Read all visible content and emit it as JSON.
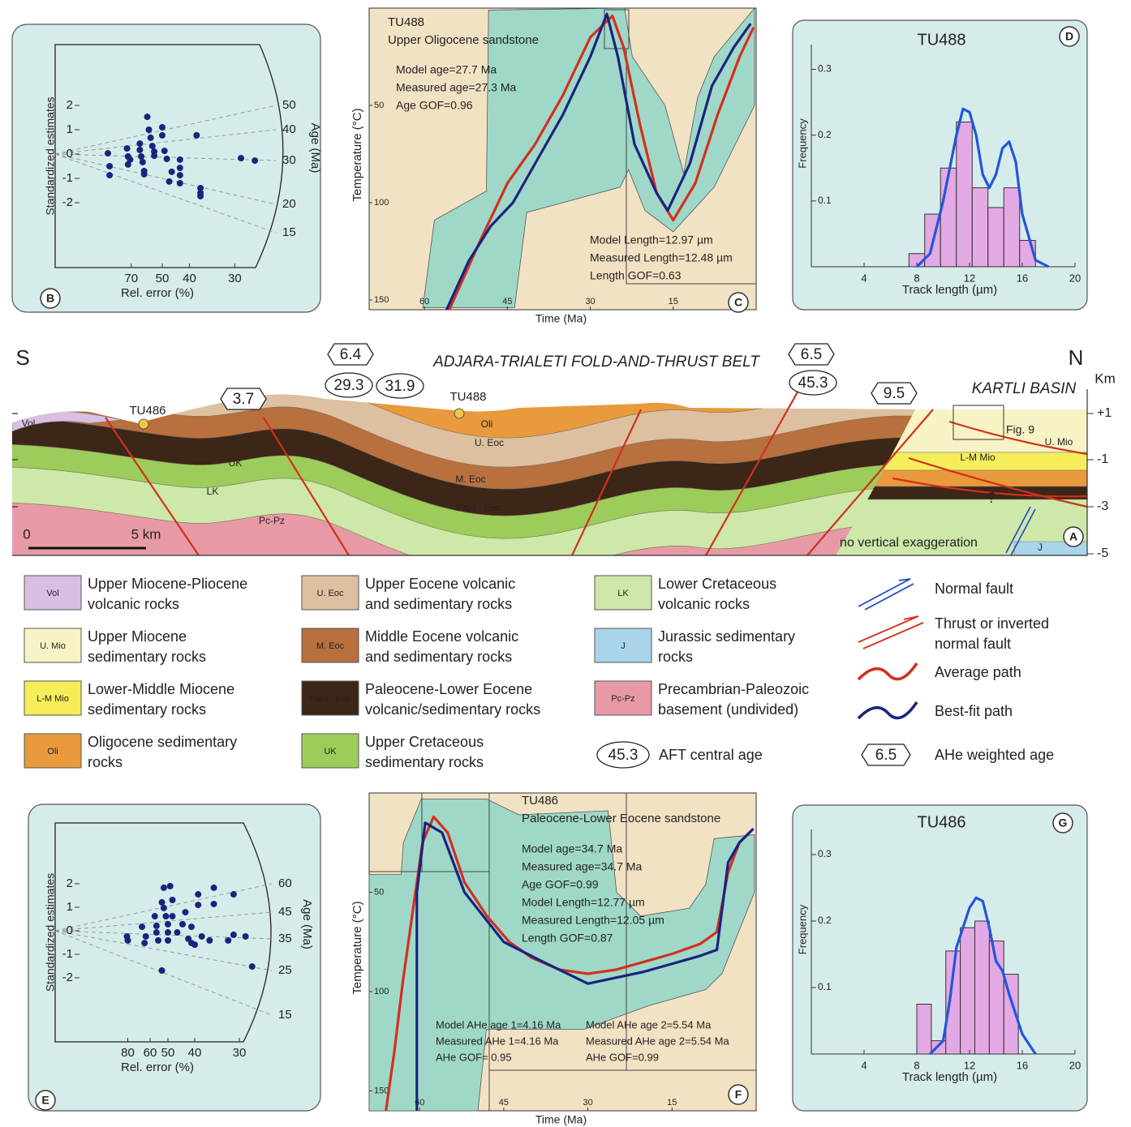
{
  "chart_data": [
    {
      "type": "radial",
      "panel": "B",
      "ylabel": "Standardized estimates",
      "xlabel": "Rel. error (%)",
      "age_label": "Age (Ma)",
      "xticks": [
        70,
        50,
        40,
        30
      ],
      "yticks": [
        2,
        1,
        0,
        -1,
        -2
      ],
      "age_ticks": [
        50,
        40,
        30,
        20,
        15
      ],
      "color": "#1a237e",
      "x": [
        100,
        97,
        97,
        74,
        73,
        73,
        71,
        63,
        63,
        62,
        61,
        60,
        60,
        58,
        57,
        56,
        55,
        54,
        54,
        50,
        50,
        49,
        48,
        47,
        46,
        43,
        43,
        43,
        43,
        38,
        37,
        37,
        37,
        29,
        27
      ],
      "y": [
        0.03,
        -0.5,
        -0.87,
        0.23,
        -0.1,
        -0.43,
        -0.23,
        0.43,
        0.17,
        -0.1,
        -0.33,
        -0.7,
        -0.83,
        1.53,
        1,
        0.67,
        0.33,
        0.1,
        -0.07,
        1.1,
        0.77,
        0.13,
        -0.2,
        -1.13,
        -0.73,
        -0.23,
        -0.57,
        -0.87,
        -1.2,
        0.77,
        -1.4,
        -1.6,
        -1.73,
        -0.17,
        -0.27
      ]
    },
    {
      "type": "line",
      "panel": "C",
      "sample": "TU488",
      "lithology": "Upper Oligocene sandstone",
      "notes": [
        "Model age=27.7 Ma",
        "Measured age=27.3 Ma",
        "Age GOF=0.96"
      ],
      "notes2": [
        "Model Length=12.97 µm",
        "Measured Length=12.48 µm",
        "Length GOF=0.63"
      ],
      "xlabel": "Time (Ma)",
      "ylabel": "Temperature (°C)",
      "xlim": [
        70,
        0
      ],
      "ylim": [
        0,
        155
      ],
      "xticks": [
        60,
        45,
        30,
        15
      ],
      "yticks": [
        50,
        100,
        150
      ],
      "band": {
        "color": "#9fd8c8",
        "x": [
          60.3,
          58.2,
          48.8,
          48.4,
          23.8,
          22.4,
          16.5,
          13.1,
          10.6,
          7.6,
          0.3,
          0.3,
          7.6,
          15,
          20.1,
          23.1,
          24.6,
          41.5,
          43.7
        ],
        "y": [
          154,
          109,
          94,
          1,
          0,
          25,
          50,
          85,
          46,
          25,
          0,
          50,
          92,
          115,
          104,
          83,
          92,
          105,
          154
        ]
      },
      "series": [
        {
          "color": "#d32f1e",
          "x": [
            55.5,
            50,
            45,
            40,
            35,
            30,
            26,
            24,
            21,
            18,
            15,
            11,
            7,
            3,
            0.5
          ],
          "y": [
            155,
            120,
            90,
            70,
            45,
            15,
            4,
            20,
            60,
            95,
            109,
            90,
            55,
            25,
            10
          ]
        },
        {
          "color": "#1a237e",
          "x": [
            56,
            52,
            48,
            44,
            40,
            35,
            30,
            27,
            25,
            22,
            18,
            16,
            12,
            8,
            4,
            1
          ],
          "y": [
            155,
            130,
            112,
            100,
            80,
            55,
            25,
            3,
            25,
            70,
            95,
            104,
            80,
            40,
            20,
            8
          ]
        }
      ]
    },
    {
      "type": "histogram",
      "panel": "D",
      "title": "TU488",
      "xlabel": "Track length (µm)",
      "ylabel": "Frequency",
      "xlim": [
        0,
        20
      ],
      "ylim": [
        0,
        0.35
      ],
      "xticks": [
        4,
        8,
        12,
        16,
        20
      ],
      "yticks": [
        0.1,
        0.2,
        0.3
      ],
      "color": "#e2a9e4",
      "line_color": "#2255dd",
      "bins": [
        7.4,
        8.6,
        9.8,
        11,
        12.2,
        13.4,
        14.6,
        15.8,
        17
      ],
      "values": [
        0.02,
        0.08,
        0.15,
        0.22,
        0.12,
        0.09,
        0.12,
        0.04
      ],
      "curve": {
        "x": [
          8,
          9,
          10,
          11,
          11.5,
          12,
          12.5,
          13,
          13.5,
          14,
          14.5,
          15,
          15.5,
          16,
          17,
          18
        ],
        "y": [
          0,
          0.02,
          0.1,
          0.2,
          0.24,
          0.235,
          0.2,
          0.14,
          0.12,
          0.14,
          0.18,
          0.19,
          0.16,
          0.08,
          0.01,
          0
        ]
      }
    },
    {
      "type": "radial",
      "panel": "E",
      "ylabel": "Standardized estimates",
      "xlabel": "Rel. error (%)",
      "age_label": "Age (Ma)",
      "xticks": [
        80,
        60,
        50,
        40,
        30
      ],
      "yticks": [
        2,
        1,
        0,
        -1,
        -2
      ],
      "age_ticks": [
        60,
        45,
        35,
        25,
        15
      ],
      "color": "#1a237e",
      "x": [
        81,
        80,
        66,
        64,
        63,
        57,
        56,
        56,
        55,
        53,
        52,
        52,
        51,
        50,
        50,
        50,
        53,
        49,
        48,
        48,
        46,
        44,
        43,
        42,
        41,
        41,
        40,
        39,
        39,
        38,
        36,
        35,
        35,
        32,
        31,
        29,
        28,
        31
      ],
      "y": [
        -0.24,
        -0.41,
        0.17,
        -0.52,
        -0.24,
        0.62,
        0.21,
        -0.07,
        -0.41,
        1.21,
        1.83,
        0.97,
        0.62,
        0.28,
        -0.07,
        -0.41,
        -1.69,
        1.9,
        1.31,
        0.62,
        -0.07,
        0.28,
        0.79,
        -0.34,
        -0.52,
        0.17,
        -0.59,
        1.55,
        1.1,
        -0.24,
        -0.41,
        1.14,
        1.83,
        -0.41,
        -0.17,
        -0.24,
        -1.52,
        1.55
      ]
    },
    {
      "type": "line",
      "panel": "F",
      "sample": "TU486",
      "lithology": "Paleocene-Lower Eocene sandstone",
      "notes": [
        "Model age=34.7 Ma",
        "Measured age=34.7 Ma",
        "Age GOF=0.99",
        "Model Length=12.77 µm",
        "Measured Length=12.05 µm",
        "Length GOF=0.87"
      ],
      "ahe1": [
        "Model AHe age 1=4.16 Ma",
        "Measured AHe 1=4.16 Ma",
        "AHe GOF= 0.95"
      ],
      "ahe2": [
        "Model AHe age 2=5.54 Ma",
        "Measured AHe age 2=5.54 Ma",
        "AHe GOF=0.99"
      ],
      "xlabel": "Time (Ma)",
      "ylabel": "Temperature (°C)",
      "xlim": [
        69,
        0
      ],
      "ylim": [
        0,
        160
      ],
      "xticks": [
        60,
        45,
        30,
        15
      ],
      "yticks": [
        50,
        100,
        150
      ],
      "band": {
        "color": "#9fd8c8",
        "x": [
          69,
          69,
          63.3,
          62.9,
          59.7,
          48.1,
          42.3,
          26.4,
          24.9,
          20.6,
          11.9,
          9,
          7.5,
          0.3,
          0.3,
          6.1,
          9,
          19.1,
          30.7,
          48.1,
          49.6
        ],
        "y": [
          160,
          41,
          41,
          25,
          3,
          3,
          11,
          9,
          50,
          62,
          58,
          46,
          23,
          21,
          50,
          91,
          99,
          107,
          119,
          119,
          160
        ]
      },
      "series": [
        {
          "color": "#d32f1e",
          "x": [
            66,
            64.5,
            63,
            61,
            59.5,
            57.5,
            55,
            52,
            48,
            44,
            40,
            35,
            30,
            25,
            20,
            15,
            10,
            7,
            5,
            3,
            0.5
          ],
          "y": [
            160,
            130,
            95,
            55,
            25,
            12,
            20,
            45,
            62,
            75,
            83,
            89,
            91,
            89,
            85,
            81,
            76,
            70,
            40,
            25,
            18
          ]
        },
        {
          "color": "#1a237e",
          "x": [
            60.5,
            60.5,
            59,
            56,
            52,
            45,
            38,
            30,
            20,
            10,
            7,
            5,
            3,
            0.5
          ],
          "y": [
            160,
            50,
            15,
            20,
            50,
            75,
            85,
            96,
            90,
            82,
            79,
            35,
            25,
            18
          ]
        }
      ]
    },
    {
      "type": "histogram",
      "panel": "G",
      "title": "TU486",
      "xlabel": "Track length (µm)",
      "ylabel": "Frequency",
      "xlim": [
        0,
        20
      ],
      "ylim": [
        0,
        0.35
      ],
      "xticks": [
        4,
        8,
        12,
        16,
        20
      ],
      "yticks": [
        0.1,
        0.2,
        0.3
      ],
      "color": "#e2a9e4",
      "line_color": "#2255dd",
      "bins": [
        8,
        9.1,
        10.2,
        11.3,
        12.4,
        13.5,
        14.6,
        15.7
      ],
      "values": [
        0.075,
        0.02,
        0.155,
        0.19,
        0.2,
        0.17,
        0.12
      ],
      "curve": {
        "x": [
          9,
          10,
          10.5,
          11,
          12,
          12.5,
          13,
          13.5,
          14,
          14.5,
          15,
          16,
          17
        ],
        "y": [
          0,
          0.02,
          0.08,
          0.16,
          0.22,
          0.235,
          0.23,
          0.19,
          0.14,
          0.125,
          0.09,
          0.03,
          0
        ]
      }
    }
  ],
  "section": {
    "panel": "A",
    "south": "S",
    "north": "N",
    "title": "ADJARA-TRIALETI FOLD-AND-THRUST BELT",
    "basin": "KARTLI BASIN",
    "km": "Km",
    "depth_ticks": [
      "+1",
      "-1",
      "-3",
      "-5"
    ],
    "samples": [
      "TU486",
      "TU488"
    ],
    "ahe": [
      3.7,
      6.4,
      6.5,
      9.5
    ],
    "aft": [
      29.3,
      31.9,
      45.3
    ],
    "labels": [
      "Vol",
      "UK",
      "LK",
      "Pc-Pz",
      "Oli",
      "U. Eoc",
      "M. Eoc",
      "Pal-L. Eoc",
      "U. Mio",
      "L-M Mio",
      "J"
    ],
    "fig": "Fig. 9",
    "query": "?",
    "scale": [
      "0",
      "5 km"
    ],
    "note": "no vertical exaggeration"
  },
  "legend": {
    "units": [
      {
        "code": "Vol",
        "color": "#d9bfe3",
        "text": [
          "Upper Miocene-Pliocene",
          "volcanic rocks"
        ]
      },
      {
        "code": "U. Mio",
        "color": "#f7f3c4",
        "text": [
          "Upper Miocene",
          "sedimentary rocks"
        ]
      },
      {
        "code": "L-M Mio",
        "color": "#f5ee5a",
        "text": [
          "Lower-Middle Miocene",
          "sedimentary rocks"
        ]
      },
      {
        "code": "Oli",
        "color": "#e89a3c",
        "text": [
          "Oligocene sedimentary",
          "rocks"
        ]
      },
      {
        "code": "U. Eoc",
        "color": "#dcc0a0",
        "text": [
          "Upper Eocene volcanic",
          "and sedimentary rocks"
        ]
      },
      {
        "code": "M. Eoc",
        "color": "#b8703e",
        "text": [
          "Middle Eocene volcanic",
          "and sedimentary rocks"
        ]
      },
      {
        "code": "Pal-L. Eoc",
        "color": "#3b2617",
        "text": [
          "Paleocene-Lower Eocene",
          "volcanic/sedimentary rocks"
        ]
      },
      {
        "code": "UK",
        "color": "#9ccc5a",
        "text": [
          "Upper Cretaceous",
          "sedimentary rocks"
        ]
      },
      {
        "code": "LK",
        "color": "#cde8a8",
        "text": [
          "Lower Cretaceous",
          "volcanic rocks"
        ]
      },
      {
        "code": "J",
        "color": "#a9d5ea",
        "text": [
          "Jurassic sedimentary",
          "rocks"
        ]
      },
      {
        "code": "Pc-Pz",
        "color": "#e79aa6",
        "text": [
          "Precambrian-Paleozoic",
          "basement (undivided)"
        ]
      }
    ],
    "symbols": [
      {
        "text": [
          "Normal fault"
        ]
      },
      {
        "text": [
          "Thrust or inverted",
          "normal fault"
        ]
      },
      {
        "text": [
          "Average path"
        ]
      },
      {
        "text": [
          "Best-fit path"
        ]
      }
    ],
    "aft": {
      "value": 45.3,
      "text": "AFT central age"
    },
    "ahe": {
      "value": 6.5,
      "text": "AHe weighted age"
    }
  }
}
